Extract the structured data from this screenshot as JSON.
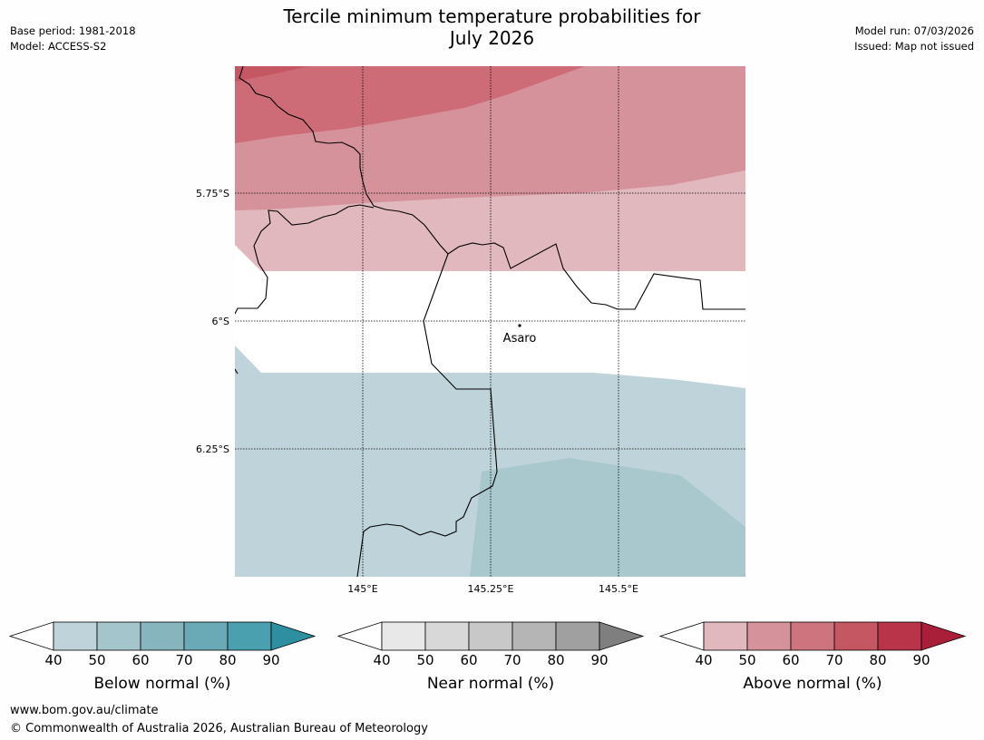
{
  "title": {
    "line1": "Tercile minimum temperature probabilities for",
    "line2": "July 2026"
  },
  "meta_left": {
    "base_period": "Base period: 1981-2018",
    "model": "Model: ACCESS-S2"
  },
  "meta_right": {
    "model_run": "Model run: 07/03/2026",
    "issued": "Issued: Map not issued"
  },
  "map": {
    "lat_labels": [
      "5.75°S",
      "6°S",
      "6.25°S"
    ],
    "lon_labels": [
      "145°E",
      "145.25°E",
      "145.5°E"
    ],
    "place": {
      "name": "Asaro"
    }
  },
  "colorbars": [
    {
      "label": "Below normal (%)",
      "ticks": [
        "40",
        "50",
        "60",
        "70",
        "80",
        "90"
      ],
      "colors": [
        "#bfd4da",
        "#a3c5cb",
        "#86b5bd",
        "#69aab6",
        "#4aa0ae",
        "#2d8f9f"
      ],
      "under": "#ffffff"
    },
    {
      "label": "Near normal (%)",
      "ticks": [
        "40",
        "50",
        "60",
        "70",
        "80",
        "90"
      ],
      "colors": [
        "#e8e8e8",
        "#d8d8d8",
        "#c8c8c8",
        "#b5b5b5",
        "#a0a0a0",
        "#7f7f7f"
      ],
      "under": "#ffffff"
    },
    {
      "label": "Above normal (%)",
      "ticks": [
        "40",
        "50",
        "60",
        "70",
        "80",
        "90"
      ],
      "colors": [
        "#e0b8bd",
        "#d5929a",
        "#cd747e",
        "#c55762",
        "#b93349",
        "#a91f3a"
      ],
      "under": "#ffffff"
    }
  ],
  "footer": {
    "url": "www.bom.gov.au/climate",
    "copyright": "© Commonwealth of Australia 2026, Australian Bureau of Meteorology"
  }
}
